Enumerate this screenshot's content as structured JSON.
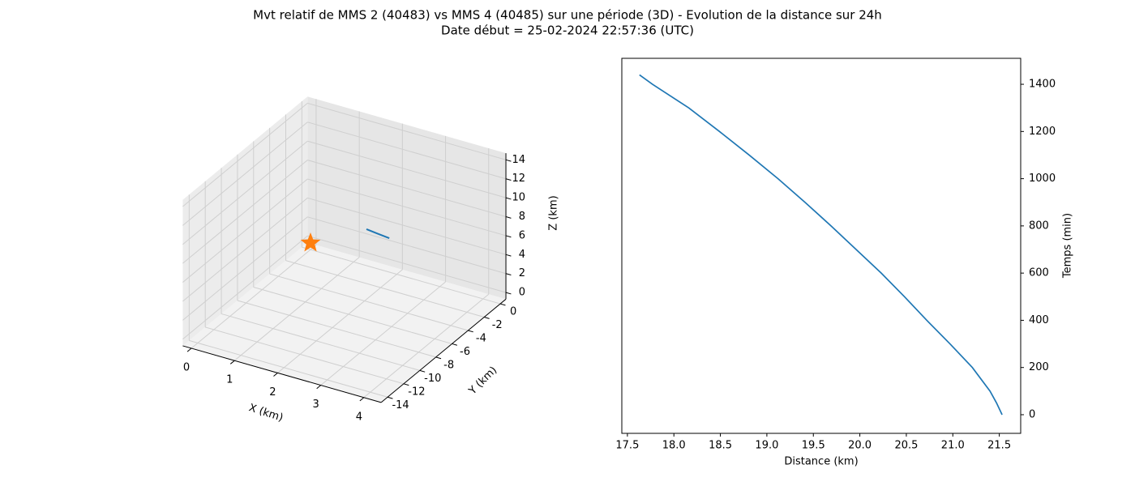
{
  "title": [
    "Mvt relatif de MMS 2 (40483) vs MMS 4 (40485) sur une période (3D) - Evolution de la distance sur 24h",
    "Date début = 25-02-2024 22:57:36 (UTC)"
  ],
  "chart_data": [
    {
      "type": "line3d",
      "xlabel": "X (km)",
      "ylabel": "Y (km)",
      "zlabel": "Z (km)",
      "xlim": [
        -0.2,
        4.4
      ],
      "ylim": [
        -14.8,
        0.7
      ],
      "zlim": [
        -0.7,
        14.7
      ],
      "xticks": [
        0,
        1,
        2,
        3,
        4
      ],
      "yticks": [
        0,
        -2,
        -4,
        -6,
        -8,
        -10,
        -12,
        -14
      ],
      "zticks": [
        0,
        2,
        4,
        6,
        8,
        10,
        12,
        14
      ],
      "grid": true,
      "series": [
        {
          "color": "#1f77b4",
          "marker": "none",
          "x": [
            3.44,
            3.73,
            4.02
          ],
          "y": [
            -11.48,
            -11.62,
            -11.75
          ],
          "z": [
            14.0,
            14.0,
            14.0
          ]
        },
        {
          "color": "#ff7f0e",
          "marker": "star",
          "x": [
            0
          ],
          "y": [
            0
          ],
          "z": [
            0
          ]
        }
      ]
    },
    {
      "type": "line",
      "xlabel": "Distance (km)",
      "ylabel": "Temps (min)",
      "yaxis_side": "right",
      "xlim": [
        17.44,
        21.73
      ],
      "ylim": [
        -79,
        1510
      ],
      "xticks": [
        {
          "value": 17.5,
          "label": "17.5"
        },
        {
          "value": 18,
          "label": "18.0"
        },
        {
          "value": 18.5,
          "label": "18.5"
        },
        {
          "value": 19,
          "label": "19.0"
        },
        {
          "value": 19.5,
          "label": "19.5"
        },
        {
          "value": 20,
          "label": "20.0"
        },
        {
          "value": 20.5,
          "label": "20.5"
        },
        {
          "value": 21,
          "label": "21.0"
        },
        {
          "value": 21.5,
          "label": "21.5"
        }
      ],
      "yticks": [
        0,
        200,
        400,
        600,
        800,
        1000,
        1200,
        1400
      ],
      "grid": false,
      "series": [
        {
          "color": "#1f77b4",
          "x": [
            21.53,
            21.47,
            21.4,
            21.21,
            20.97,
            20.72,
            20.48,
            20.23,
            19.96,
            19.69,
            19.41,
            19.12,
            18.81,
            18.49,
            18.16,
            17.77,
            17.63
          ],
          "y": [
            0,
            50,
            100,
            200,
            300,
            400,
            500,
            600,
            700,
            800,
            900,
            1000,
            1100,
            1200,
            1300,
            1400,
            1440
          ]
        }
      ]
    }
  ]
}
